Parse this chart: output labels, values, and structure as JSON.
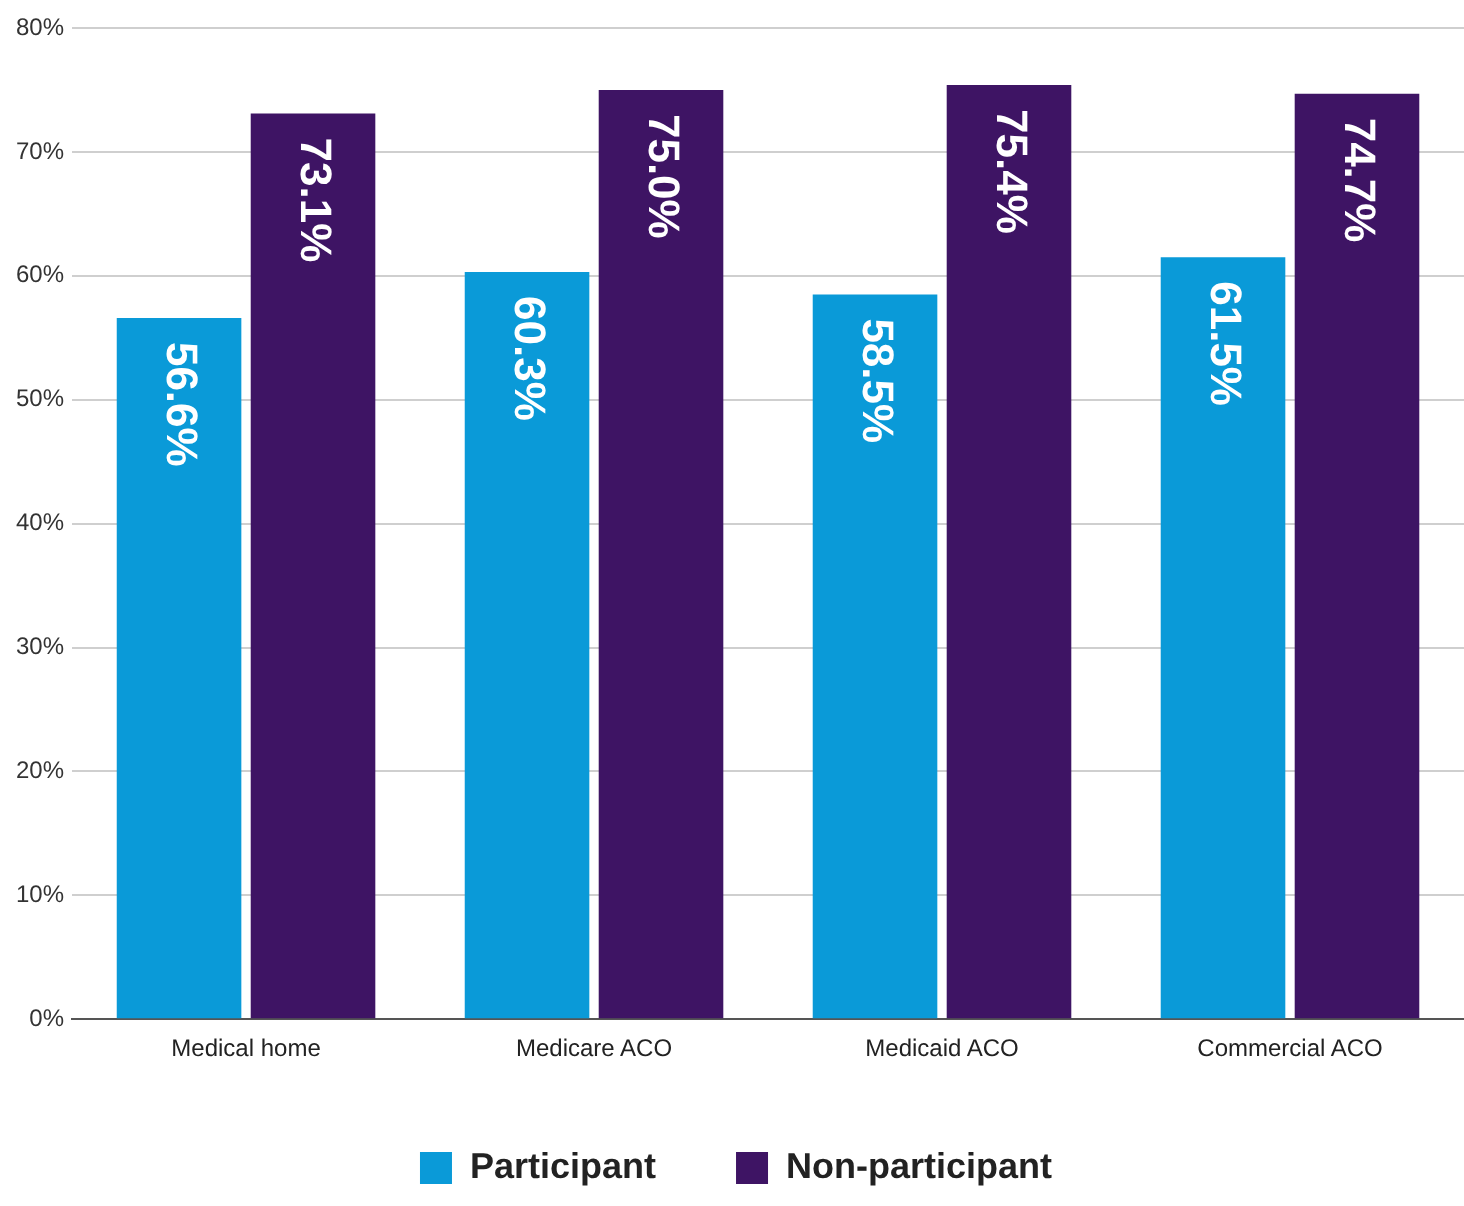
{
  "chart_data": {
    "type": "bar",
    "categories": [
      "Medical home",
      "Medicare ACO",
      "Medicaid ACO",
      "Commercial ACO"
    ],
    "series": [
      {
        "name": "Participant",
        "color": "#0a9ad8",
        "values": [
          56.6,
          60.3,
          58.5,
          61.5
        ],
        "value_labels": [
          "56.6%",
          "60.3%",
          "58.5%",
          "61.5%"
        ]
      },
      {
        "name": "Non-participant",
        "color": "#3e1464",
        "values": [
          73.1,
          75.0,
          75.4,
          74.7
        ],
        "value_labels": [
          "73.1%",
          "75.0%",
          "75.4%",
          "74.7%"
        ]
      }
    ],
    "ylim": [
      0,
      80
    ],
    "yticks": [
      {
        "value": 0,
        "label": "0%"
      },
      {
        "value": 10,
        "label": "10%"
      },
      {
        "value": 20,
        "label": "20%"
      },
      {
        "value": 30,
        "label": "30%"
      },
      {
        "value": 40,
        "label": "40%"
      },
      {
        "value": 50,
        "label": "50%"
      },
      {
        "value": 60,
        "label": "60%"
      },
      {
        "value": 70,
        "label": "70%"
      },
      {
        "value": 80,
        "label": "80%"
      }
    ],
    "grid": "y",
    "legend": "bottom"
  }
}
